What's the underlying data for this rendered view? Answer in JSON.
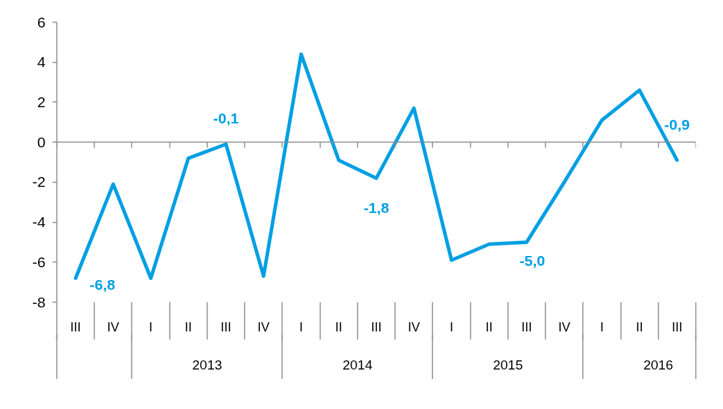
{
  "chart_data": {
    "type": "line",
    "categories": [
      "III",
      "IV",
      "I",
      "II",
      "III",
      "IV",
      "I",
      "II",
      "III",
      "IV",
      "I",
      "II",
      "III",
      "IV",
      "I",
      "II",
      "III"
    ],
    "values": [
      -6.8,
      -2.1,
      -6.8,
      -0.8,
      -0.1,
      -6.7,
      4.4,
      -0.9,
      -1.8,
      1.7,
      -5.9,
      -5.1,
      -5.0,
      -2.0,
      1.1,
      2.6,
      -0.9
    ],
    "value_labels": [
      "-6,8",
      null,
      null,
      null,
      "-0,1",
      null,
      null,
      null,
      "-1,8",
      null,
      null,
      null,
      "-5,0",
      null,
      null,
      null,
      "-0,9"
    ],
    "color": "#009fe3",
    "line_style": "solid",
    "ylim": [
      -8,
      6
    ],
    "yticks": [
      -8,
      -6,
      -4,
      -2,
      0,
      2,
      4,
      6
    ],
    "x2lim": [
      2012,
      2016.25
    ],
    "x2ticks": [
      {
        "value": 2012,
        "label": null
      },
      {
        "value": 2012.5,
        "label": null
      },
      2013,
      {
        "value": 2013.5,
        "label": null
      },
      2014,
      {
        "value": 2014.5,
        "label": null
      },
      2015,
      {
        "value": 2015.5,
        "label": null
      },
      2016,
      {
        "value": 2016.25,
        "label": null
      }
    ]
  }
}
